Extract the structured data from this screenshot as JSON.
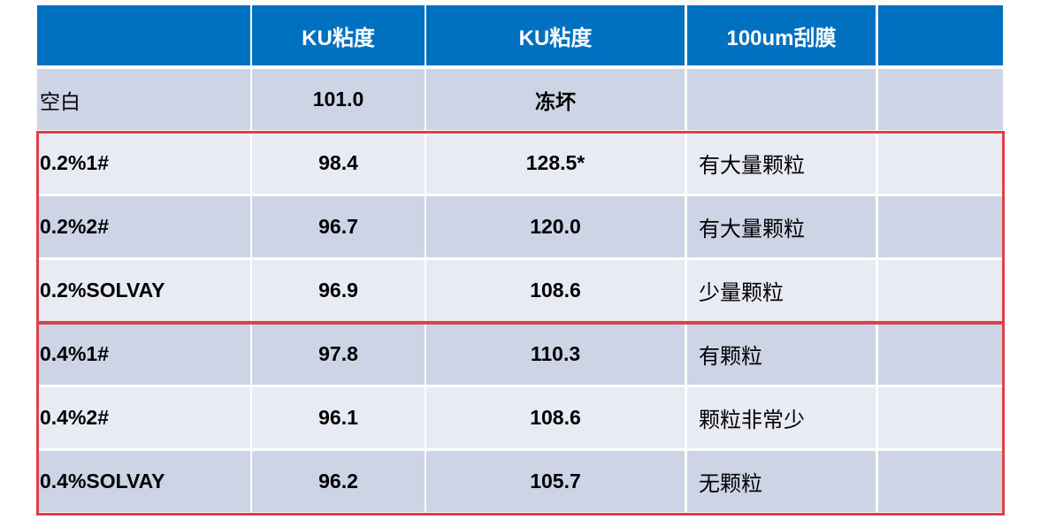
{
  "table": {
    "header": [
      "KU粘度",
      "KU粘度",
      "100um刮膜"
    ],
    "rows": [
      {
        "name": "空白",
        "ku1": "101.0",
        "ku2": "冻坏"
      },
      {
        "name": "0.2%1#",
        "ku1": "98.4",
        "ku2": "128.5*",
        "film": "有大量颗粒"
      },
      {
        "name": "0.2%2#",
        "ku1": "96.7",
        "ku2": "120.0",
        "film": "有大量颗粒"
      },
      {
        "name": "0.2%SOLVAY",
        "ku1": "96.9",
        "ku2": "108.6",
        "film": "少量颗粒"
      },
      {
        "name": "0.4%1#",
        "ku1": "97.8",
        "ku2": "110.3",
        "film": "有颗粒"
      },
      {
        "name": "0.4%2#",
        "ku1": "96.1",
        "ku2": "108.6",
        "film": "颗粒非常少"
      },
      {
        "name": "0.4%SOLVAY",
        "ku1": "96.2",
        "ku2": "105.7",
        "film": "无颗粒"
      }
    ]
  }
}
